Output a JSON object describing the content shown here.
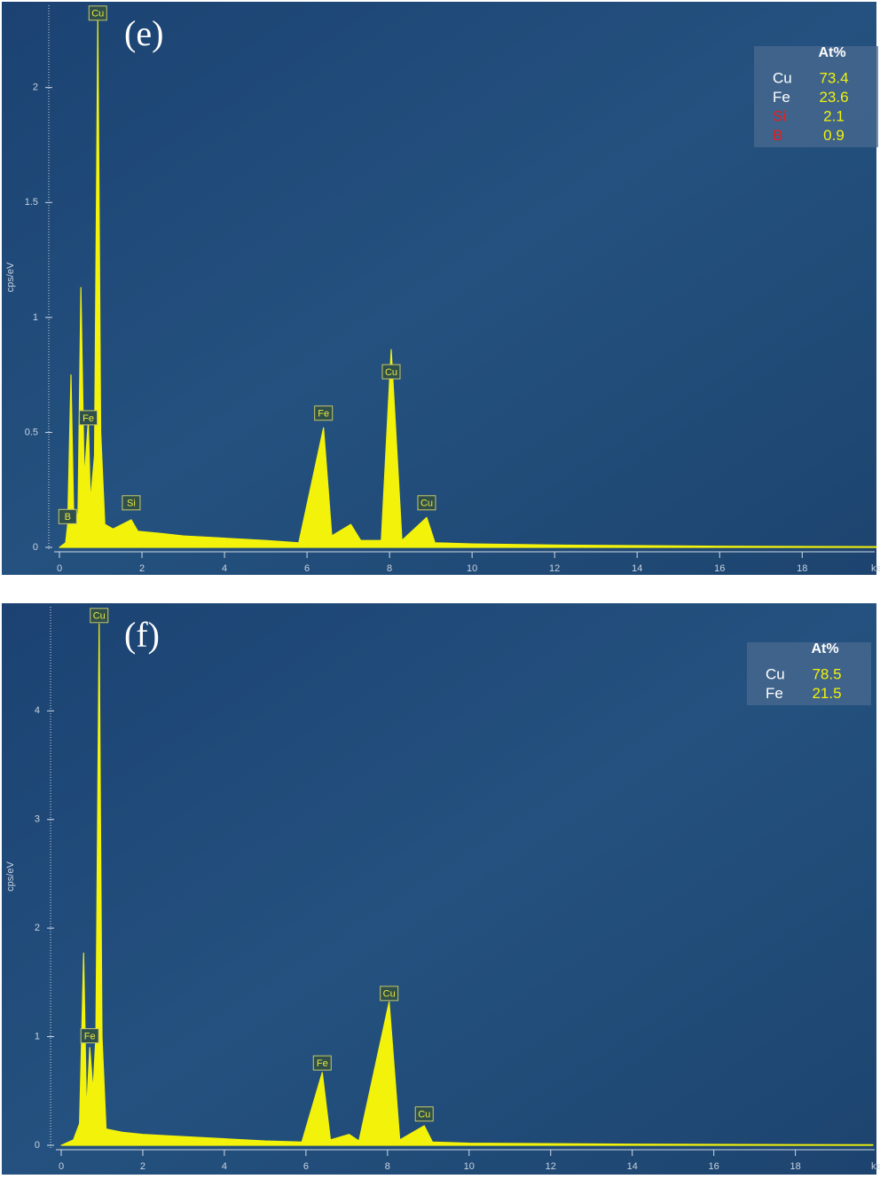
{
  "chart_data": [
    {
      "type": "area",
      "panel_label": "(e)",
      "y_label": "cps/eV",
      "x_label": "ke",
      "color": "#f2f20a",
      "xlim": [
        0,
        19.8
      ],
      "ylim": [
        0,
        2.35
      ],
      "xticks": [
        0,
        2,
        4,
        6,
        8,
        10,
        12,
        14,
        16,
        18
      ],
      "yticks": [
        0,
        0.5,
        1,
        1.5,
        2
      ],
      "x": [
        0,
        0.15,
        0.2,
        0.28,
        0.35,
        0.45,
        0.52,
        0.6,
        0.7,
        0.75,
        0.85,
        0.93,
        1.0,
        1.1,
        1.3,
        1.74,
        1.9,
        2.5,
        3,
        4,
        5,
        5.8,
        6.4,
        6.6,
        7.06,
        7.3,
        7.8,
        8.04,
        8.3,
        8.9,
        9.1,
        10,
        12,
        16,
        19.8
      ],
      "values": [
        0,
        0.02,
        0.1,
        0.75,
        0.1,
        0.15,
        1.13,
        0.3,
        0.55,
        0.2,
        0.4,
        2.3,
        0.5,
        0.1,
        0.08,
        0.12,
        0.07,
        0.06,
        0.05,
        0.04,
        0.03,
        0.02,
        0.52,
        0.05,
        0.1,
        0.03,
        0.03,
        0.86,
        0.03,
        0.13,
        0.02,
        0.015,
        0.01,
        0.005,
        0.003
      ],
      "peak_labels": [
        {
          "label": "B",
          "x": 0.2,
          "y": 0.13
        },
        {
          "label": "Cu",
          "x": 0.93,
          "y": 2.32
        },
        {
          "label": "Fe",
          "x": 0.7,
          "y": 0.56
        },
        {
          "label": "Si",
          "x": 1.74,
          "y": 0.19
        },
        {
          "label": "Fe",
          "x": 6.4,
          "y": 0.58
        },
        {
          "label": "Cu",
          "x": 8.04,
          "y": 0.76
        },
        {
          "label": "Cu",
          "x": 8.9,
          "y": 0.19
        }
      ],
      "composition": {
        "header": "At%",
        "rows": [
          {
            "element": "Cu",
            "value": 73.4,
            "color": "#ffffff"
          },
          {
            "element": "Fe",
            "value": 23.6,
            "color": "#ffffff"
          },
          {
            "element": "Si",
            "value": 2.1,
            "color": "#e02020"
          },
          {
            "element": "B",
            "value": 0.9,
            "color": "#e02020"
          }
        ]
      }
    },
    {
      "type": "area",
      "panel_label": "(f)",
      "y_label": "cps/eV",
      "x_label": "ke",
      "color": "#f2f20a",
      "xlim": [
        0,
        19.9
      ],
      "ylim": [
        0,
        4.95
      ],
      "xticks": [
        0,
        2,
        4,
        6,
        8,
        10,
        12,
        14,
        16,
        18
      ],
      "yticks": [
        0,
        1,
        2,
        3,
        4
      ],
      "x": [
        0,
        0.3,
        0.45,
        0.55,
        0.62,
        0.7,
        0.78,
        0.85,
        0.93,
        1.0,
        1.1,
        1.5,
        2,
        3,
        4,
        5,
        5.9,
        6.4,
        6.6,
        7.06,
        7.3,
        8.04,
        8.3,
        8.9,
        9.1,
        10,
        14,
        19.9
      ],
      "values": [
        0,
        0.05,
        0.2,
        1.77,
        0.3,
        0.9,
        0.5,
        1.0,
        4.8,
        1.0,
        0.15,
        0.12,
        0.1,
        0.08,
        0.06,
        0.04,
        0.03,
        0.67,
        0.05,
        0.1,
        0.04,
        1.32,
        0.05,
        0.18,
        0.03,
        0.02,
        0.01,
        0.005
      ],
      "peak_labels": [
        {
          "label": "Cu",
          "x": 0.93,
          "y": 4.87
        },
        {
          "label": "Fe",
          "x": 0.7,
          "y": 1.0
        },
        {
          "label": "Fe",
          "x": 6.4,
          "y": 0.75
        },
        {
          "label": "Cu",
          "x": 8.04,
          "y": 1.39
        },
        {
          "label": "Cu",
          "x": 8.9,
          "y": 0.28
        }
      ],
      "composition": {
        "header": "At%",
        "rows": [
          {
            "element": "Cu",
            "value": 78.5,
            "color": "#ffffff"
          },
          {
            "element": "Fe",
            "value": 21.5,
            "color": "#ffffff"
          }
        ]
      }
    }
  ]
}
